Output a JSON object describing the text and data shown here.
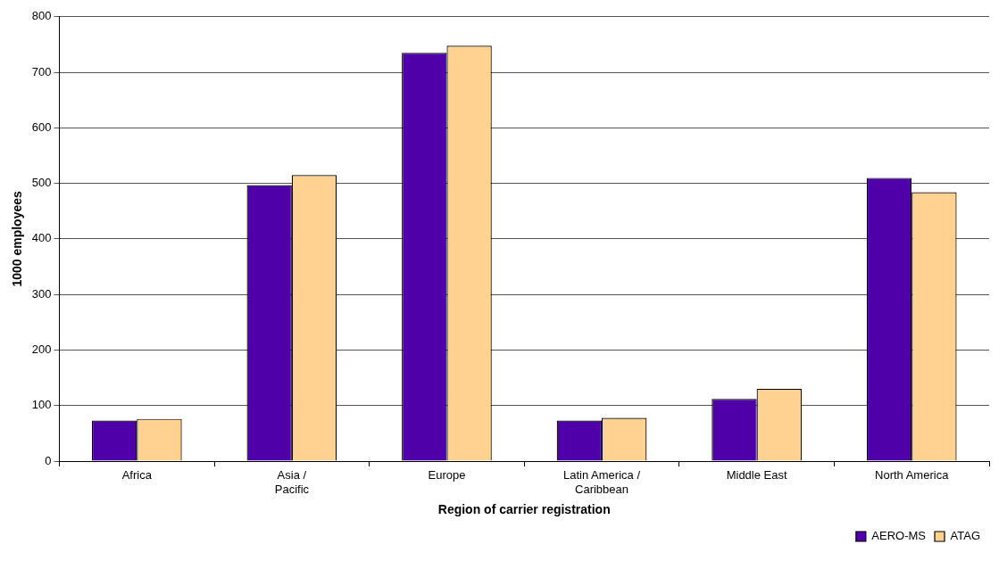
{
  "chart_data": {
    "type": "bar",
    "xlabel": "Region of carrier registration",
    "ylabel": "1000 employees",
    "categories": [
      "Africa",
      "Asia / Pacific",
      "Europe",
      "Latin America / Caribbean",
      "Middle East",
      "North America"
    ],
    "series": [
      {
        "name": "AERO-MS",
        "color": "#5000a8",
        "values": [
          73,
          497,
          735,
          73,
          112,
          510
        ]
      },
      {
        "name": "ATAG",
        "color": "#ffd291",
        "values": [
          76,
          515,
          748,
          78,
          130,
          484
        ]
      }
    ],
    "ylim": [
      0,
      800
    ],
    "yticks": [
      0,
      100,
      200,
      300,
      400,
      500,
      600,
      700,
      800
    ],
    "grid": "y",
    "legend": "bottom right"
  }
}
